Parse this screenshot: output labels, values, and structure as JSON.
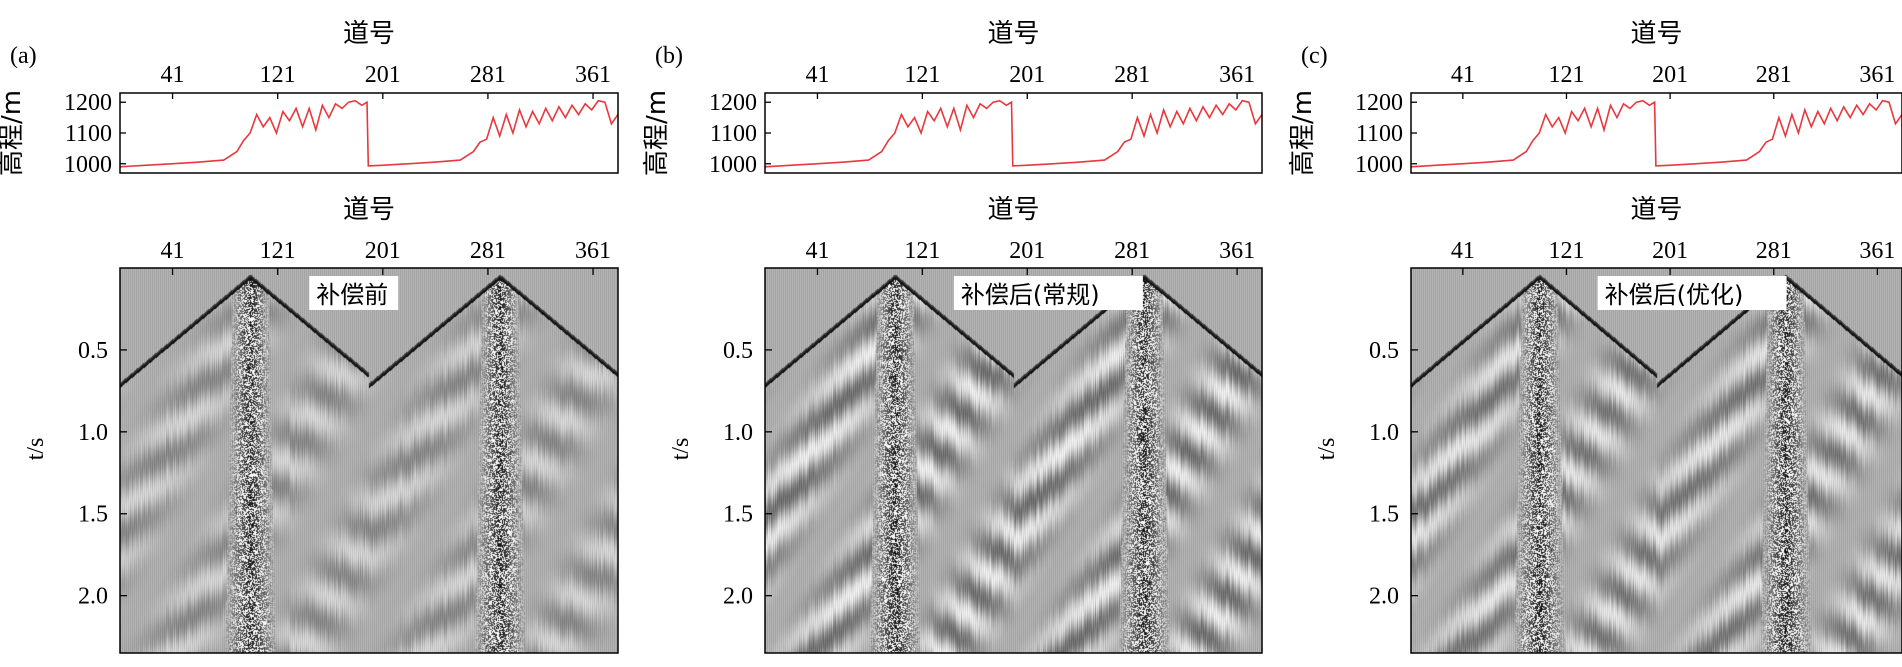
{
  "chart_data": [
    {
      "type": "line",
      "panel_label": "(a)",
      "xlabel": "道号",
      "ylabel": "高程/m",
      "x_ticks": [
        41,
        121,
        201,
        281,
        361
      ],
      "y_ticks": [
        1000,
        1100,
        1200
      ],
      "xlim": [
        1,
        380
      ],
      "ylim": [
        970,
        1230
      ],
      "series": [
        {
          "color": "#e8383d",
          "x": [
            1,
            20,
            40,
            60,
            80,
            90,
            95,
            100,
            105,
            110,
            115,
            120,
            125,
            130,
            135,
            140,
            145,
            150,
            155,
            160,
            165,
            170,
            175,
            180,
            185,
            189,
            190,
            200,
            220,
            240,
            260,
            270,
            275,
            280,
            285,
            290,
            295,
            300,
            305,
            310,
            315,
            320,
            325,
            330,
            335,
            340,
            345,
            350,
            355,
            360,
            365,
            370,
            375,
            380
          ],
          "y": [
            990,
            995,
            1000,
            1005,
            1012,
            1040,
            1075,
            1100,
            1160,
            1120,
            1150,
            1100,
            1170,
            1140,
            1180,
            1120,
            1180,
            1110,
            1190,
            1150,
            1195,
            1180,
            1200,
            1205,
            1190,
            1200,
            993,
            995,
            1000,
            1005,
            1012,
            1040,
            1070,
            1080,
            1150,
            1090,
            1160,
            1100,
            1175,
            1120,
            1170,
            1130,
            1180,
            1140,
            1185,
            1150,
            1190,
            1160,
            1195,
            1175,
            1205,
            1200,
            1130,
            1160
          ]
        }
      ]
    },
    {
      "type": "line",
      "panel_label": "(b)",
      "xlabel": "道号",
      "ylabel": "高程/m",
      "x_ticks": [
        41,
        121,
        201,
        281,
        361
      ],
      "y_ticks": [
        1000,
        1100,
        1200
      ],
      "xlim": [
        1,
        380
      ],
      "ylim": [
        970,
        1230
      ],
      "series": [
        {
          "color": "#e8383d",
          "x": [
            1,
            20,
            40,
            60,
            80,
            90,
            95,
            100,
            105,
            110,
            115,
            120,
            125,
            130,
            135,
            140,
            145,
            150,
            155,
            160,
            165,
            170,
            175,
            180,
            185,
            189,
            190,
            200,
            220,
            240,
            260,
            270,
            275,
            280,
            285,
            290,
            295,
            300,
            305,
            310,
            315,
            320,
            325,
            330,
            335,
            340,
            345,
            350,
            355,
            360,
            365,
            370,
            375,
            380
          ],
          "y": [
            990,
            995,
            1000,
            1005,
            1012,
            1040,
            1075,
            1100,
            1160,
            1120,
            1150,
            1100,
            1170,
            1140,
            1180,
            1120,
            1180,
            1110,
            1190,
            1150,
            1195,
            1180,
            1200,
            1205,
            1190,
            1200,
            993,
            995,
            1000,
            1005,
            1012,
            1040,
            1070,
            1080,
            1150,
            1090,
            1160,
            1100,
            1175,
            1120,
            1170,
            1130,
            1180,
            1140,
            1185,
            1150,
            1190,
            1160,
            1195,
            1175,
            1205,
            1200,
            1130,
            1160
          ]
        }
      ]
    },
    {
      "type": "line",
      "panel_label": "(c)",
      "xlabel": "道号",
      "ylabel": "高程/m",
      "x_ticks": [
        41,
        121,
        201,
        281,
        361
      ],
      "y_ticks": [
        1000,
        1100,
        1200
      ],
      "xlim": [
        1,
        380
      ],
      "ylim": [
        970,
        1230
      ],
      "series": [
        {
          "color": "#e8383d",
          "x": [
            1,
            20,
            40,
            60,
            80,
            90,
            95,
            100,
            105,
            110,
            115,
            120,
            125,
            130,
            135,
            140,
            145,
            150,
            155,
            160,
            165,
            170,
            175,
            180,
            185,
            189,
            190,
            200,
            220,
            240,
            260,
            270,
            275,
            280,
            285,
            290,
            295,
            300,
            305,
            310,
            315,
            320,
            325,
            330,
            335,
            340,
            345,
            350,
            355,
            360,
            365,
            370,
            375,
            380
          ],
          "y": [
            990,
            995,
            1000,
            1005,
            1012,
            1040,
            1075,
            1100,
            1160,
            1120,
            1150,
            1100,
            1170,
            1140,
            1180,
            1120,
            1180,
            1110,
            1190,
            1150,
            1195,
            1180,
            1200,
            1205,
            1190,
            1200,
            993,
            995,
            1000,
            1005,
            1012,
            1040,
            1070,
            1080,
            1150,
            1090,
            1160,
            1100,
            1175,
            1120,
            1170,
            1130,
            1180,
            1140,
            1185,
            1150,
            1190,
            1160,
            1195,
            1175,
            1205,
            1200,
            1130,
            1160
          ]
        }
      ]
    },
    {
      "type": "heatmap",
      "panel_label": "(a)",
      "annotation": "补偿前",
      "xlabel": "道号",
      "ylabel": "t/s",
      "x_ticks": [
        41,
        121,
        201,
        281,
        361
      ],
      "y_ticks": [
        0.5,
        1.0,
        1.5,
        2.0
      ],
      "xlim": [
        1,
        380
      ],
      "ylim": [
        2.35,
        0.0
      ],
      "shot_positions": [
        100,
        290
      ],
      "first_break_at_edges_s": 0.68,
      "noise_strength": 0.55
    },
    {
      "type": "heatmap",
      "panel_label": "(b)",
      "annotation": "补偿后(常规)",
      "xlabel": "道号",
      "ylabel": "t/s",
      "x_ticks": [
        41,
        121,
        201,
        281,
        361
      ],
      "y_ticks": [
        0.5,
        1.0,
        1.5,
        2.0
      ],
      "xlim": [
        1,
        380
      ],
      "ylim": [
        2.35,
        0.0
      ],
      "shot_positions": [
        100,
        290
      ],
      "first_break_at_edges_s": 0.68,
      "noise_strength": 0.9
    },
    {
      "type": "heatmap",
      "panel_label": "(c)",
      "annotation": "补偿后(优化)",
      "xlabel": "道号",
      "ylabel": "t/s",
      "x_ticks": [
        41,
        121,
        201,
        281,
        361
      ],
      "y_ticks": [
        0.5,
        1.0,
        1.5,
        2.0
      ],
      "xlim": [
        1,
        380
      ],
      "ylim": [
        2.35,
        0.0
      ],
      "shot_positions": [
        100,
        290
      ],
      "first_break_at_edges_s": 0.68,
      "noise_strength": 0.8
    }
  ],
  "colors": {
    "elevation_line": "#e8383d",
    "seismic_background": "#a8a8a8",
    "seismic_dark": "#000000"
  }
}
